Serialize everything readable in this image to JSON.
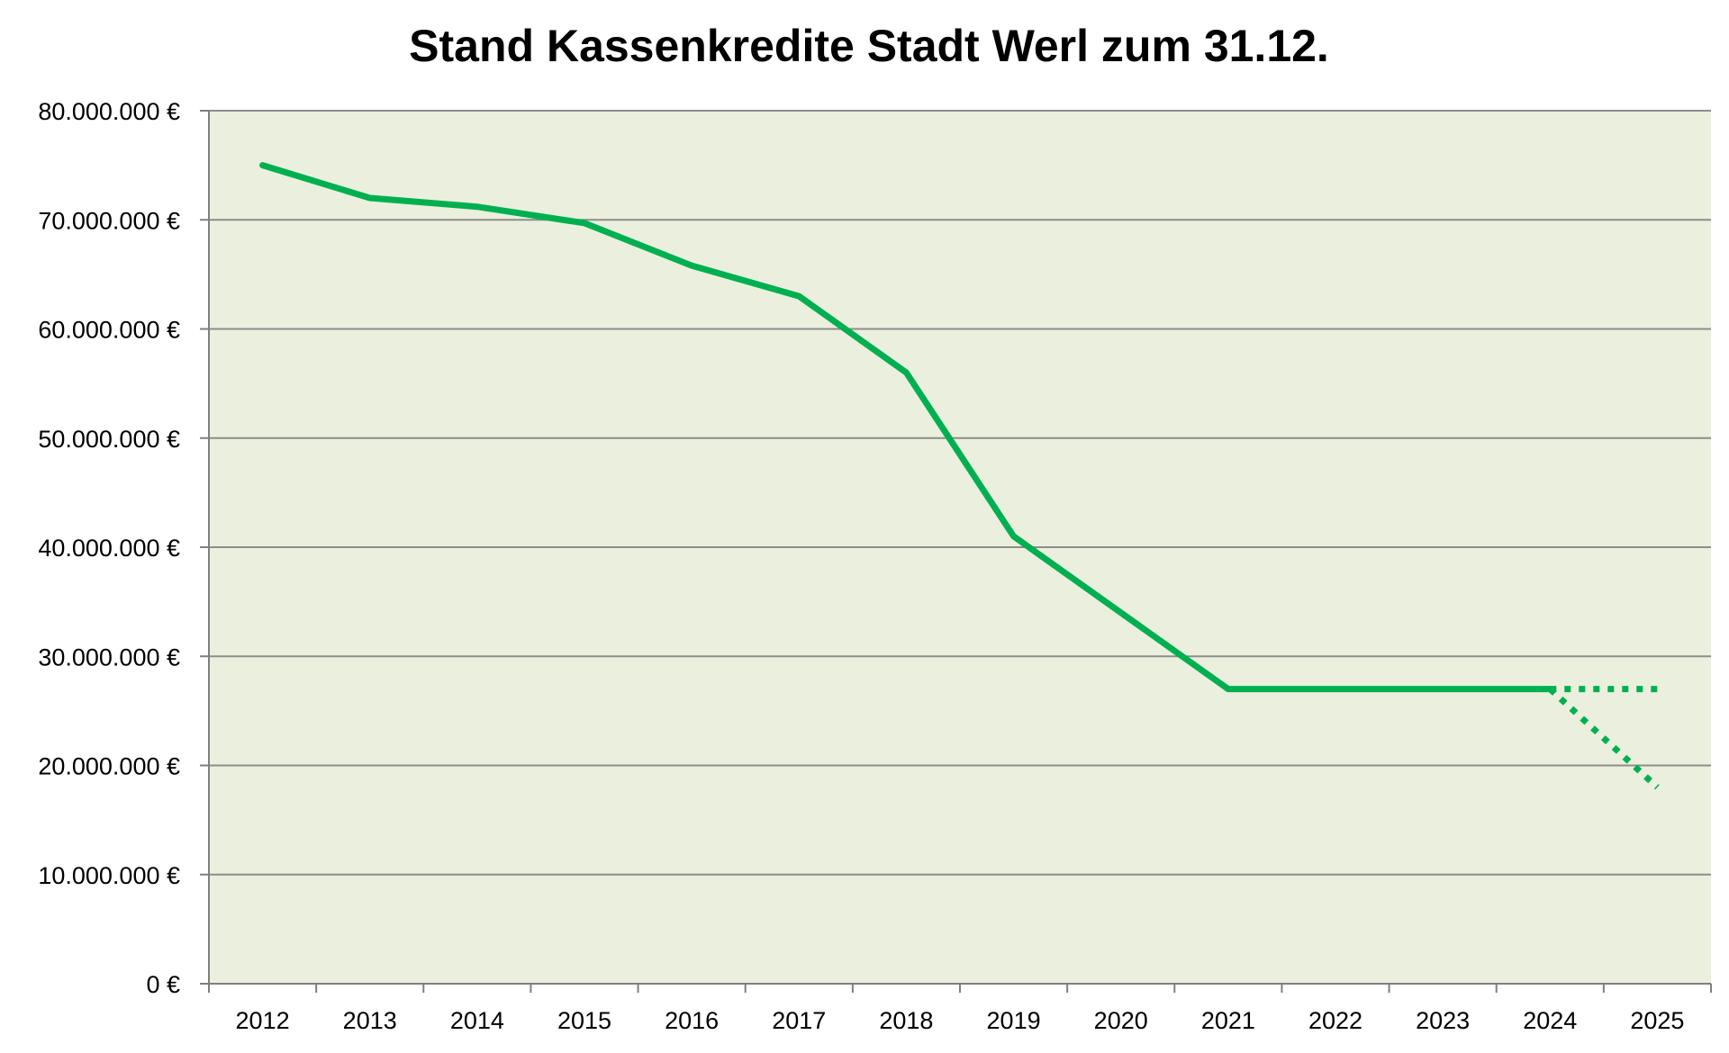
{
  "chart_data": {
    "type": "line",
    "title": "Stand Kassenkredite Stadt Werl zum 31.12.",
    "xlabel": "",
    "ylabel": "",
    "categories": [
      "2012",
      "2013",
      "2014",
      "2015",
      "2016",
      "2017",
      "2018",
      "2019",
      "2020",
      "2021",
      "2022",
      "2023",
      "2024",
      "2025"
    ],
    "ylim": [
      0,
      80000000
    ],
    "y_tick_values": [
      0,
      10000000,
      20000000,
      30000000,
      40000000,
      50000000,
      60000000,
      70000000,
      80000000
    ],
    "y_tick_labels": [
      "0 €",
      "10.000.000 €",
      "20.000.000 €",
      "30.000.000 €",
      "40.000.000 €",
      "50.000.000 €",
      "60.000.000 €",
      "70.000.000 €",
      "80.000.000 €"
    ],
    "grid": true,
    "legend": "none",
    "colors": {
      "plot_background": "#ebf0de",
      "line": "#00b050",
      "grid": "#8c8c8c",
      "axis": "#7f7f7f"
    },
    "series": [
      {
        "style": "solid",
        "values": [
          75000000,
          72000000,
          71200000,
          69700000,
          65800000,
          63000000,
          56000000,
          41000000,
          34000000,
          27000000,
          27000000,
          27000000,
          27000000,
          null
        ]
      },
      {
        "style": "dotted",
        "values": [
          null,
          null,
          null,
          null,
          null,
          null,
          null,
          null,
          null,
          null,
          null,
          null,
          27000000,
          27000000
        ]
      },
      {
        "style": "dotted",
        "values": [
          null,
          null,
          null,
          null,
          null,
          null,
          null,
          null,
          null,
          null,
          null,
          null,
          27000000,
          18000000
        ]
      }
    ]
  }
}
